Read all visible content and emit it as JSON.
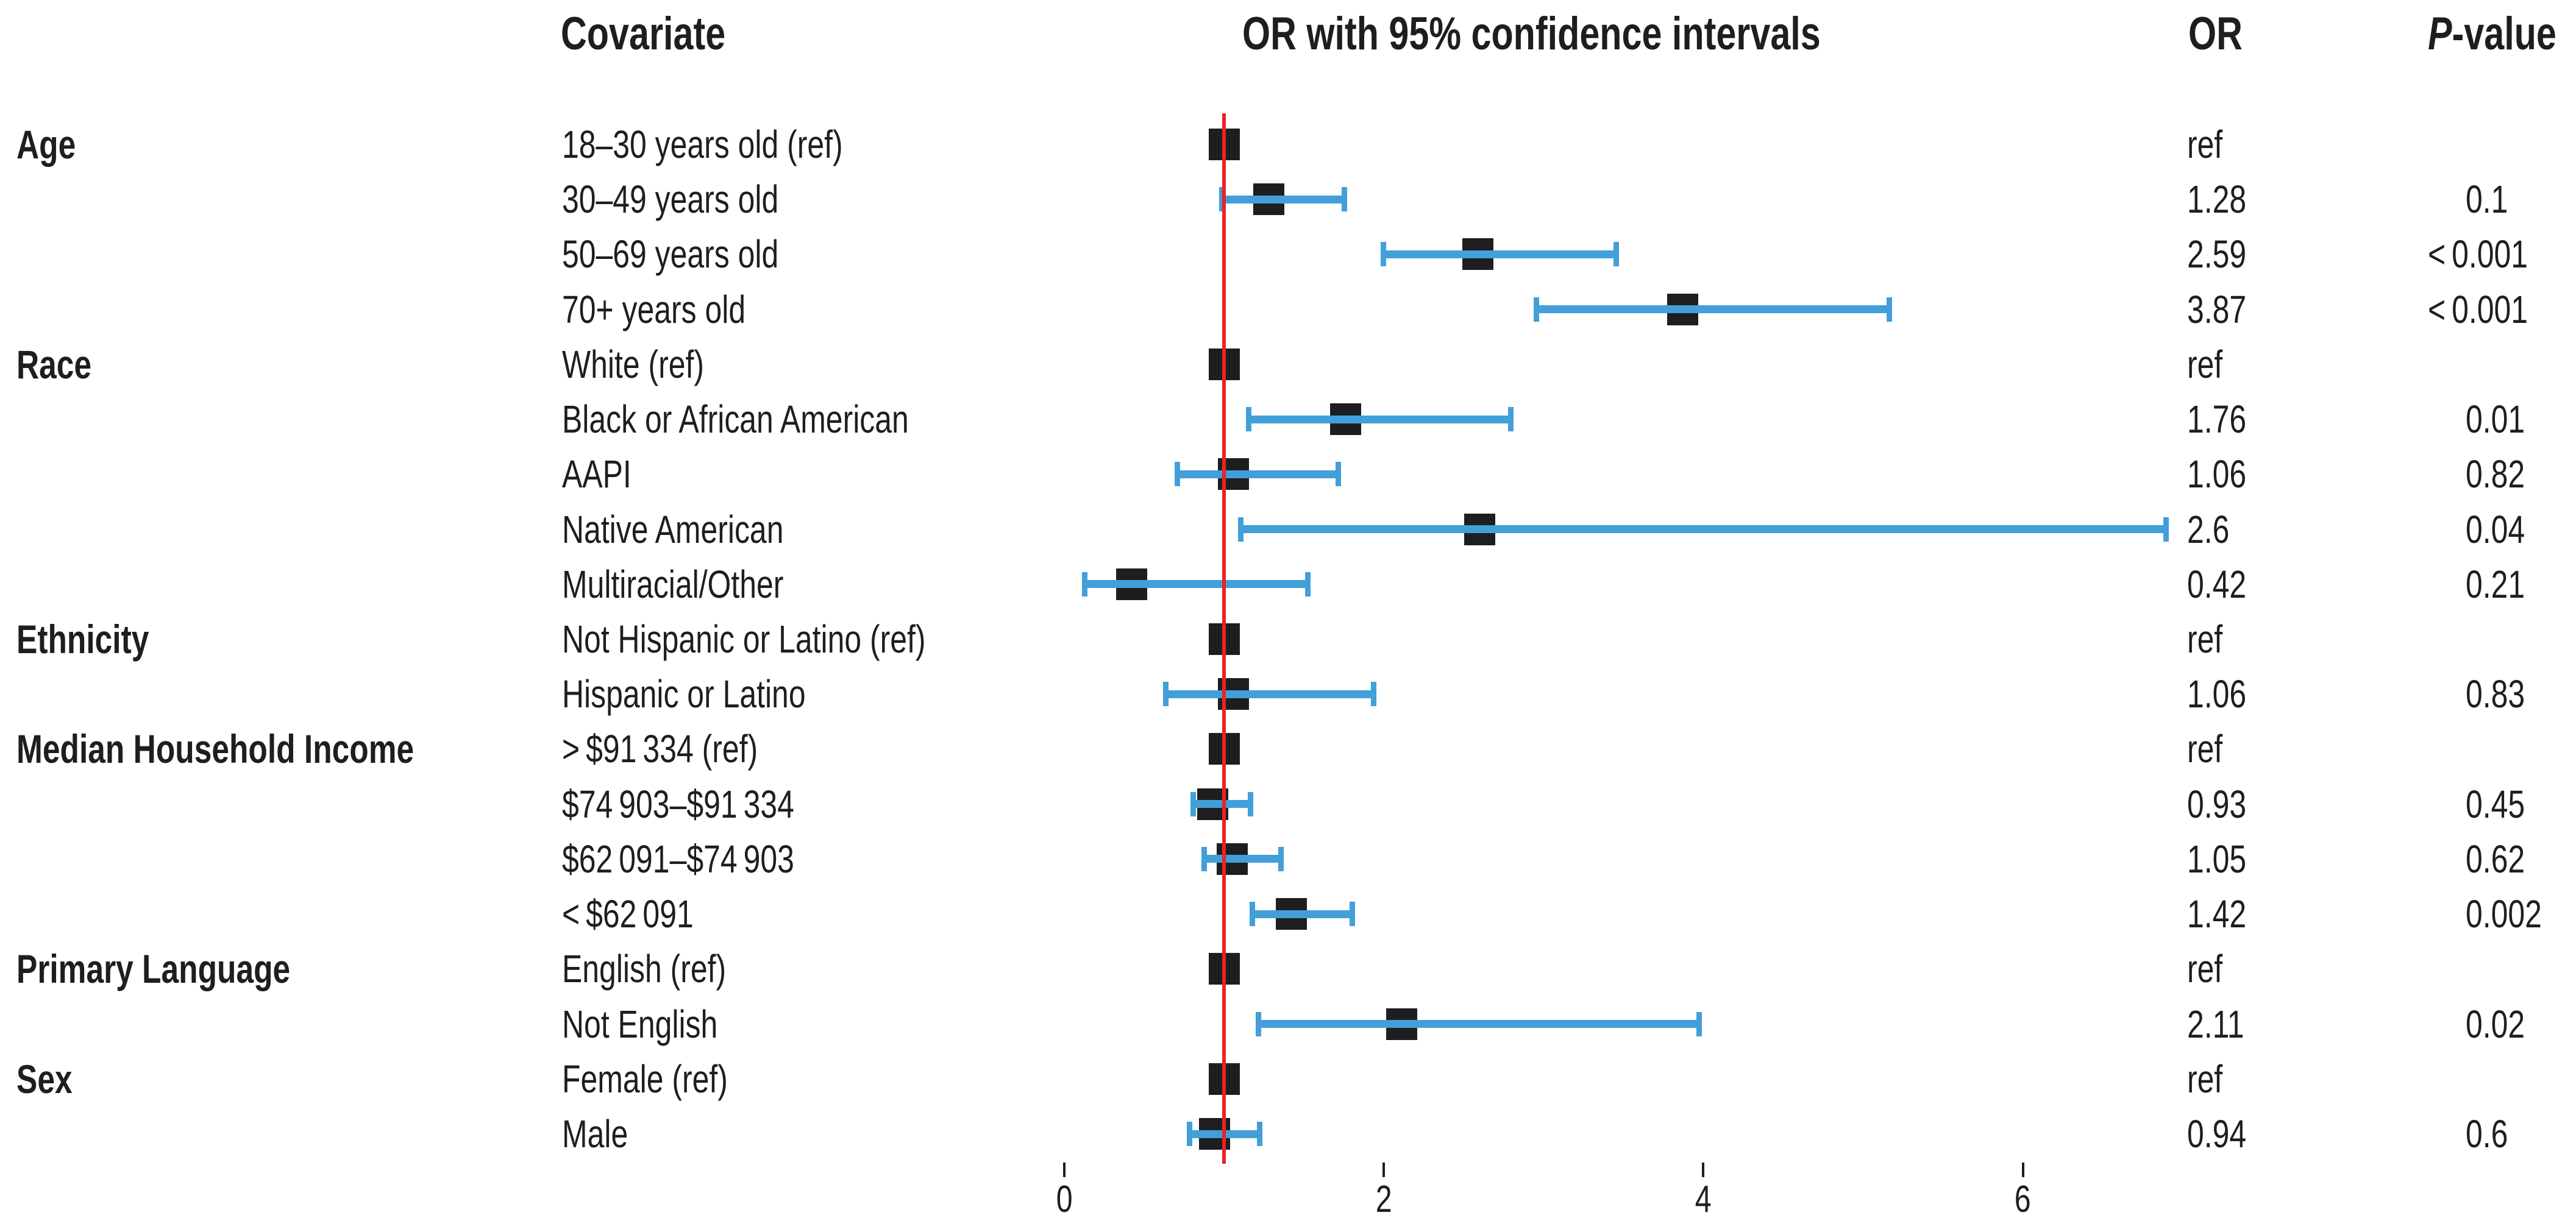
{
  "header": {
    "covariate": "Covariate",
    "ci": "OR with 95% confidence intervals",
    "or": "OR",
    "p_italic": "P",
    "p_rest": "-value"
  },
  "colors": {
    "text": "#1e1e20",
    "marker": "#1e1e20",
    "ci_blue": "#429fd9",
    "ref_red": "#ec2127"
  },
  "chart_data": {
    "type": "forest",
    "title": "OR with 95% confidence intervals",
    "xlabel": "",
    "x_ticks": [
      0,
      2,
      4,
      6
    ],
    "xlim": [
      0,
      6.95
    ],
    "refline_or": 1,
    "grid": false,
    "rows": [
      {
        "group": "Age",
        "label": "18–30 years old (ref)",
        "ref": true,
        "or_text": "ref",
        "p": ""
      },
      {
        "group": "",
        "label": "30–49 years old",
        "or": 1.28,
        "ci": [
          0.98,
          1.76
        ],
        "or_text": "1.28",
        "p": "0.1"
      },
      {
        "group": "",
        "label": "50–69 years old",
        "or": 2.59,
        "ci": [
          1.99,
          3.46
        ],
        "or_text": "2.59",
        "p": "< 0.001"
      },
      {
        "group": "",
        "label": "70+ years old",
        "or": 3.87,
        "ci": [
          2.95,
          5.17
        ],
        "or_text": "3.87",
        "p": "< 0.001"
      },
      {
        "group": "Race",
        "label": "White (ref)",
        "ref": true,
        "or_text": "ref",
        "p": ""
      },
      {
        "group": "",
        "label": "Black or African American",
        "or": 1.76,
        "ci": [
          1.15,
          2.8
        ],
        "or_text": "1.76",
        "p": "0.01"
      },
      {
        "group": "",
        "label": "AAPI",
        "or": 1.06,
        "ci": [
          0.7,
          1.72
        ],
        "or_text": "1.06",
        "p": "0.82"
      },
      {
        "group": "",
        "label": "Native American",
        "or": 2.6,
        "ci": [
          1.1,
          6.9
        ],
        "or_text": "2.6",
        "p": "0.04"
      },
      {
        "group": "",
        "label": "Multiracial/Other",
        "or": 0.42,
        "ci": [
          0.12,
          1.53
        ],
        "or_text": "0.42",
        "p": "0.21"
      },
      {
        "group": "Ethnicity",
        "label": "Not Hispanic or Latino (ref)",
        "ref": true,
        "or_text": "ref",
        "p": ""
      },
      {
        "group": "",
        "label": "Hispanic or Latino",
        "or": 1.06,
        "ci": [
          0.63,
          1.94
        ],
        "or_text": "1.06",
        "p": "0.83"
      },
      {
        "group": "Median Household Income",
        "label": "> $91 334 (ref)",
        "ref": true,
        "or_text": "ref",
        "p": ""
      },
      {
        "group": "",
        "label": "$74 903–$91 334",
        "or": 0.93,
        "ci": [
          0.8,
          1.17
        ],
        "or_text": "0.93",
        "p": "0.45"
      },
      {
        "group": "",
        "label": "$62 091–$74 903",
        "or": 1.05,
        "ci": [
          0.87,
          1.36
        ],
        "or_text": "1.05",
        "p": "0.62"
      },
      {
        "group": "",
        "label": "< $62 091",
        "or": 1.42,
        "ci": [
          1.17,
          1.81
        ],
        "or_text": "1.42",
        "p": "0.002"
      },
      {
        "group": "Primary Language",
        "label": "English (ref)",
        "ref": true,
        "or_text": "ref",
        "p": ""
      },
      {
        "group": "",
        "label": "Not English",
        "or": 2.11,
        "ci": [
          1.21,
          3.98
        ],
        "or_text": "2.11",
        "p": "0.02"
      },
      {
        "group": "Sex",
        "label": "Female (ref)",
        "ref": true,
        "or_text": "ref",
        "p": ""
      },
      {
        "group": "",
        "label": "Male",
        "or": 0.94,
        "ci": [
          0.78,
          1.23
        ],
        "or_text": "0.94",
        "p": "0.6"
      }
    ]
  }
}
